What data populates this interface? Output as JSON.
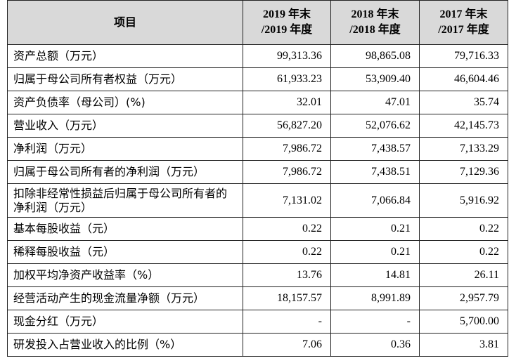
{
  "table": {
    "header": [
      [
        "项目"
      ],
      [
        "2019 年末",
        "/2019 年度"
      ],
      [
        "2018 年末",
        "/2018 年度"
      ],
      [
        "2017 年末",
        "/2017 年度"
      ]
    ],
    "rows": [
      [
        "资产总额（万元）",
        "99,313.36",
        "98,865.08",
        "79,716.33"
      ],
      [
        "归属于母公司所有者权益（万元）",
        "61,933.23",
        "53,909.40",
        "46,604.46"
      ],
      [
        "资产负债率（母公司）(%)",
        "32.01",
        "47.01",
        "35.74"
      ],
      [
        "营业收入（万元）",
        "56,827.20",
        "52,076.62",
        "42,145.73"
      ],
      [
        "净利润（万元）",
        "7,986.72",
        "7,438.57",
        "7,133.29"
      ],
      [
        "归属于母公司所有者的净利润（万元）",
        "7,986.72",
        "7,438.51",
        "7,129.36"
      ],
      [
        "扣除非经常性损益后归属于母公司所有者的净利润（万元）",
        "7,131.02",
        "7,066.84",
        "5,916.92"
      ],
      [
        "基本每股收益（元）",
        "0.22",
        "0.21",
        "0.22"
      ],
      [
        "稀释每股收益（元）",
        "0.22",
        "0.21",
        "0.22"
      ],
      [
        "加权平均净资产收益率（%）",
        "13.76",
        "14.81",
        "26.11"
      ],
      [
        "经营活动产生的现金流量净额（万元）",
        "18,157.57",
        "8,991.89",
        "2,957.79"
      ],
      [
        "现金分红（万元）",
        "-",
        "-",
        "5,700.00"
      ],
      [
        "研发投入占营业收入的比例（%）",
        "7.06",
        "0.36",
        "3.81"
      ]
    ]
  }
}
